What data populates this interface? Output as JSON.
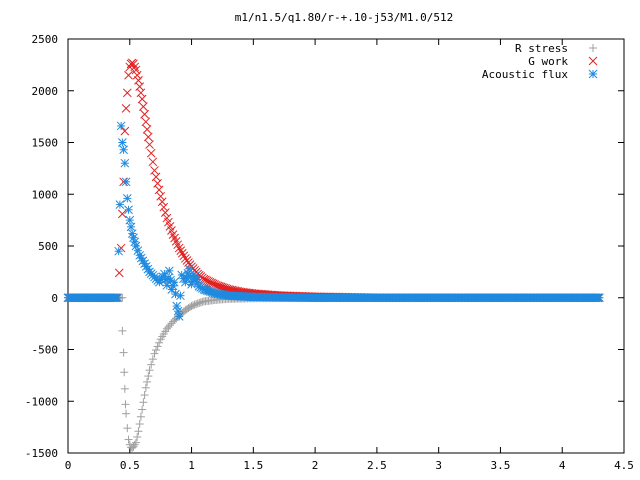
{
  "chart_data": {
    "type": "scatter",
    "title": "m1/n1.5/q1.80/r-+.10-j53/M1.0/512",
    "xlabel": "",
    "ylabel": "",
    "xlim": [
      0,
      4.5
    ],
    "ylim": [
      -1500,
      2500
    ],
    "xticks": [
      "0",
      "0.5",
      "1",
      "1.5",
      "2",
      "2.5",
      "3",
      "3.5",
      "4",
      "4.5"
    ],
    "yticks": [
      "-1500",
      "-1000",
      "-500",
      "0",
      "500",
      "1000",
      "1500",
      "2000",
      "2500"
    ],
    "grid": false,
    "legend_position": "top-right",
    "series": [
      {
        "name": "R stress",
        "marker": "plus",
        "color": "#a0a0a0",
        "points": [
          [
            0.0,
            0
          ],
          [
            0.1,
            0
          ],
          [
            0.2,
            0
          ],
          [
            0.3,
            0
          ],
          [
            0.38,
            0
          ],
          [
            0.44,
            0
          ],
          [
            0.44,
            -320
          ],
          [
            0.45,
            -530
          ],
          [
            0.455,
            -720
          ],
          [
            0.46,
            -880
          ],
          [
            0.465,
            -1030
          ],
          [
            0.47,
            -1120
          ],
          [
            0.48,
            -1260
          ],
          [
            0.49,
            -1370
          ],
          [
            0.5,
            -1420
          ],
          [
            0.51,
            -1445
          ],
          [
            0.52,
            -1450
          ],
          [
            0.53,
            -1440
          ],
          [
            0.55,
            -1400
          ],
          [
            0.57,
            -1290
          ],
          [
            0.6,
            -1080
          ],
          [
            0.63,
            -870
          ],
          [
            0.66,
            -700
          ],
          [
            0.7,
            -540
          ],
          [
            0.75,
            -400
          ],
          [
            0.8,
            -300
          ],
          [
            0.85,
            -230
          ],
          [
            0.9,
            -170
          ],
          [
            0.95,
            -120
          ],
          [
            1.0,
            -80
          ],
          [
            1.05,
            -55
          ],
          [
            1.1,
            -35
          ],
          [
            1.2,
            -20
          ],
          [
            1.3,
            -10
          ],
          [
            1.5,
            -4
          ],
          [
            2.0,
            -1
          ],
          [
            2.5,
            0
          ],
          [
            3.0,
            0
          ],
          [
            3.5,
            0
          ],
          [
            4.0,
            0
          ],
          [
            4.3,
            0
          ]
        ]
      },
      {
        "name": "G work",
        "marker": "cross",
        "color": "#e32020",
        "points": [
          [
            0.0,
            0
          ],
          [
            0.1,
            0
          ],
          [
            0.2,
            0
          ],
          [
            0.3,
            0
          ],
          [
            0.4,
            0
          ],
          [
            0.43,
            480
          ],
          [
            0.44,
            810
          ],
          [
            0.45,
            1120
          ],
          [
            0.46,
            1610
          ],
          [
            0.47,
            1830
          ],
          [
            0.48,
            1980
          ],
          [
            0.49,
            2150
          ],
          [
            0.5,
            2230
          ],
          [
            0.51,
            2260
          ],
          [
            0.52,
            2270
          ],
          [
            0.53,
            2260
          ],
          [
            0.55,
            2200
          ],
          [
            0.57,
            2100
          ],
          [
            0.6,
            1920
          ],
          [
            0.63,
            1700
          ],
          [
            0.66,
            1480
          ],
          [
            0.7,
            1230
          ],
          [
            0.75,
            980
          ],
          [
            0.8,
            770
          ],
          [
            0.85,
            610
          ],
          [
            0.9,
            480
          ],
          [
            0.95,
            380
          ],
          [
            1.0,
            300
          ],
          [
            1.05,
            230
          ],
          [
            1.1,
            180
          ],
          [
            1.2,
            120
          ],
          [
            1.3,
            80
          ],
          [
            1.4,
            55
          ],
          [
            1.5,
            40
          ],
          [
            1.7,
            22
          ],
          [
            2.0,
            10
          ],
          [
            2.3,
            5
          ],
          [
            2.5,
            0
          ],
          [
            3.0,
            0
          ],
          [
            3.5,
            0
          ],
          [
            4.0,
            0
          ],
          [
            4.3,
            0
          ]
        ]
      },
      {
        "name": "Acoustic flux",
        "marker": "star",
        "color": "#1e8ae0",
        "points": [
          [
            0.0,
            0
          ],
          [
            0.1,
            0
          ],
          [
            0.2,
            0
          ],
          [
            0.3,
            0
          ],
          [
            0.4,
            0
          ],
          [
            0.42,
            900
          ],
          [
            0.43,
            1660
          ],
          [
            0.44,
            1500
          ],
          [
            0.45,
            1430
          ],
          [
            0.46,
            1300
          ],
          [
            0.47,
            1120
          ],
          [
            0.48,
            960
          ],
          [
            0.49,
            850
          ],
          [
            0.5,
            750
          ],
          [
            0.52,
            620
          ],
          [
            0.55,
            500
          ],
          [
            0.58,
            410
          ],
          [
            0.62,
            330
          ],
          [
            0.66,
            250
          ],
          [
            0.7,
            200
          ],
          [
            0.74,
            150
          ],
          [
            0.78,
            230
          ],
          [
            0.8,
            120
          ],
          [
            0.82,
            260
          ],
          [
            0.84,
            80
          ],
          [
            0.86,
            150
          ],
          [
            0.88,
            -80
          ],
          [
            0.9,
            -180
          ],
          [
            0.92,
            220
          ],
          [
            0.95,
            150
          ],
          [
            0.98,
            280
          ],
          [
            1.0,
            130
          ],
          [
            1.03,
            210
          ],
          [
            1.06,
            110
          ],
          [
            1.1,
            80
          ],
          [
            1.2,
            40
          ],
          [
            1.3,
            20
          ],
          [
            1.5,
            8
          ],
          [
            2.0,
            0
          ],
          [
            2.5,
            0
          ],
          [
            3.0,
            0
          ],
          [
            3.5,
            0
          ],
          [
            4.0,
            0
          ],
          [
            4.3,
            0
          ]
        ]
      }
    ]
  }
}
